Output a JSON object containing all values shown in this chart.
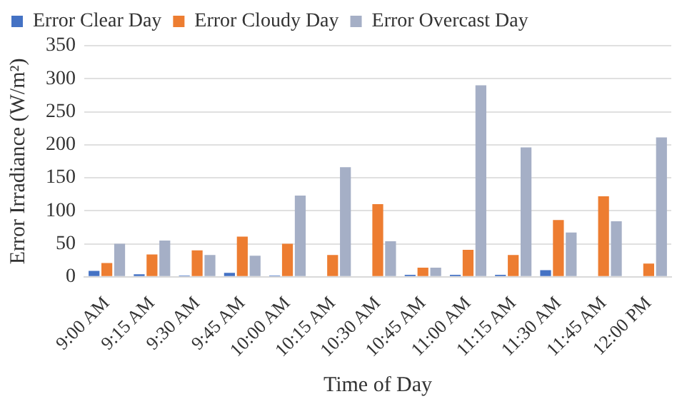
{
  "chart_data": {
    "type": "bar",
    "xlabel": "Time of Day",
    "ylabel": "Error Irradiance (W/m²)",
    "categories": [
      "9:00 AM",
      "9:15 AM",
      "9:30 AM",
      "9:45 AM",
      "10:00 AM",
      "10:15 AM",
      "10:30 AM",
      "10:45 AM",
      "11:00 AM",
      "11:15 AM",
      "11:30 AM",
      "11:45 AM",
      "12:00 PM"
    ],
    "series": [
      {
        "name": "Error Clear Day",
        "color": "#4472c4",
        "values": [
          9,
          4,
          2,
          6,
          2,
          0,
          0,
          3,
          3,
          3,
          10,
          0,
          0
        ]
      },
      {
        "name": "Error Cloudy Day",
        "color": "#ed7d31",
        "values": [
          21,
          34,
          40,
          61,
          50,
          33,
          110,
          14,
          41,
          33,
          86,
          122,
          20
        ]
      },
      {
        "name": "Error Overcast Day",
        "color": "#a5afc6",
        "values": [
          50,
          55,
          33,
          32,
          123,
          166,
          54,
          14,
          290,
          196,
          67,
          84,
          211
        ]
      }
    ],
    "ylim": [
      0,
      350
    ],
    "yticks": [
      0,
      50,
      100,
      150,
      200,
      250,
      300,
      350
    ],
    "grid": "y",
    "legend": "top"
  }
}
